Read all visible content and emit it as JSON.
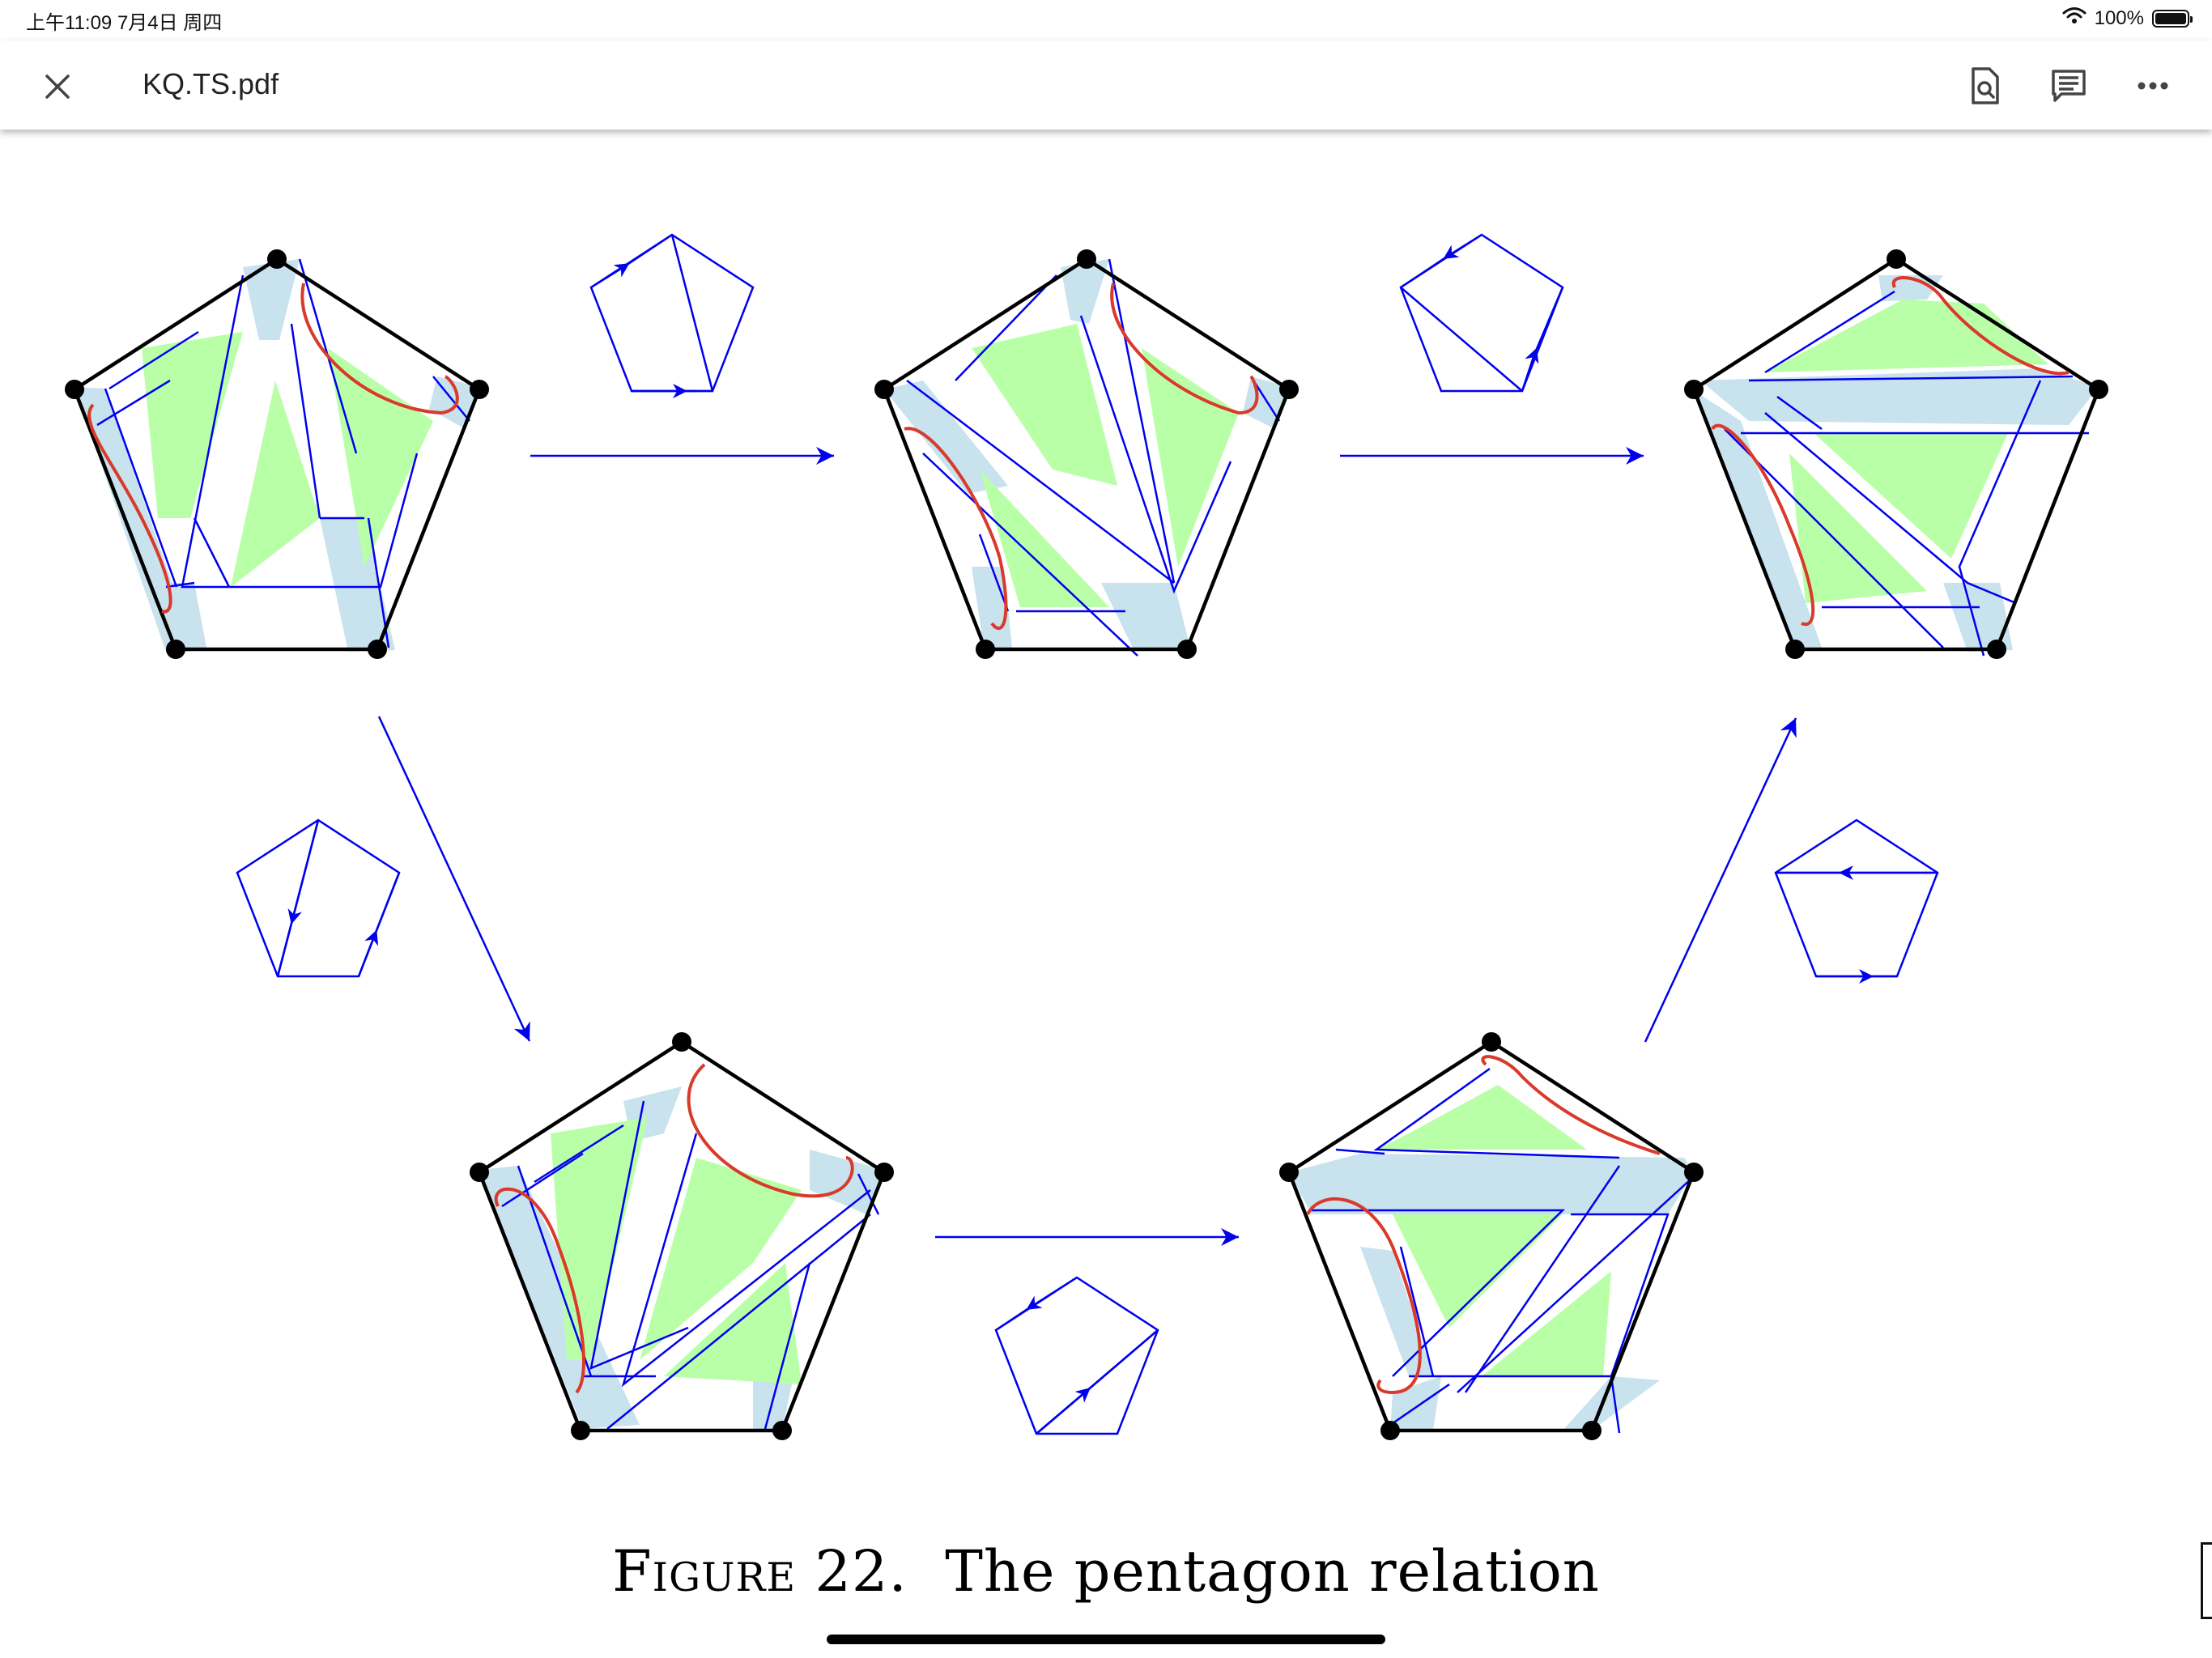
{
  "status_bar": {
    "time": "上午11:09   7月4日 周四",
    "battery": "100%",
    "battery_level": 1.0
  },
  "toolbar": {
    "title": "KQ.TS.pdf",
    "icons": [
      "close-icon",
      "find-in-page-icon",
      "comments-icon",
      "more-icon"
    ]
  },
  "figure": {
    "caption_label": "Figure 22.",
    "caption_text": "The pentagon relation"
  },
  "colors": {
    "line": "#0000ee",
    "green": "#b9ffa8",
    "light_blue": "#c8e2ee",
    "red": "#d93a2b",
    "black": "#000000"
  }
}
